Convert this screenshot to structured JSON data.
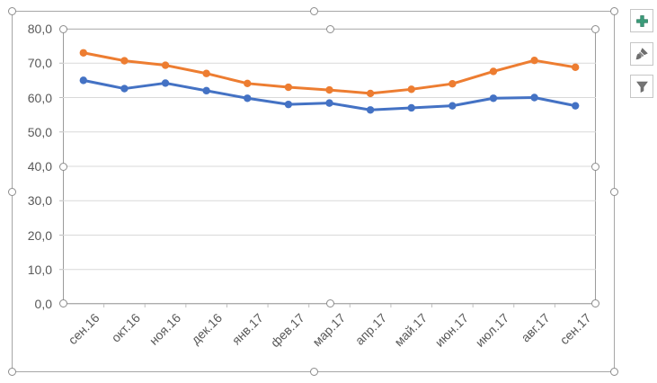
{
  "chart_data": {
    "type": "line",
    "title": "",
    "xlabel": "",
    "ylabel": "",
    "categories": [
      "сен.16",
      "окт.16",
      "ноя.16",
      "дек.16",
      "янв.17",
      "фев.17",
      "мар.17",
      "апр.17",
      "май.17",
      "июн.17",
      "июл.17",
      "авг.17",
      "сен.17"
    ],
    "series": [
      {
        "name": "series-orange",
        "color": "#ED7D31",
        "values": [
          73.0,
          70.7,
          69.4,
          67.0,
          64.1,
          63.0,
          62.2,
          61.2,
          62.4,
          64.0,
          67.6,
          70.8,
          68.8
        ]
      },
      {
        "name": "series-blue",
        "color": "#4472C4",
        "values": [
          65.0,
          62.6,
          64.2,
          62.0,
          59.8,
          58.0,
          58.4,
          56.4,
          57.0,
          57.6,
          59.8,
          60.0,
          57.6
        ]
      }
    ],
    "ylim": [
      0,
      80
    ],
    "ytick_step": 10,
    "ytick_labels_top_to_bottom": [
      "80,0",
      "70,0",
      "60,0",
      "50,0",
      "40,0",
      "30,0",
      "20,0",
      "10,0",
      "0,0"
    ],
    "grid": true,
    "legend": "none",
    "marker": "circle",
    "axis_number_format": "comma-decimal"
  },
  "selection": {
    "state": "plot-area-selected",
    "handle_count_outer": 8,
    "handle_count_inner": 8
  },
  "toolbar": {
    "buttons": [
      {
        "id": "chart-elements",
        "icon": "plus-icon"
      },
      {
        "id": "chart-styles",
        "icon": "paintbrush-icon"
      },
      {
        "id": "chart-filters",
        "icon": "funnel-icon"
      }
    ]
  },
  "colors": {
    "series_orange": "#ED7D31",
    "series_blue": "#4472C4",
    "gridline": "#D9D9D9",
    "axis_line": "#BFBFBF",
    "axis_text": "#595959",
    "selection_border": "#A6A6A6",
    "handle_border": "#8C8C8C",
    "plus_green": "#3B9C7A",
    "tool_icon_gray": "#6E6E6E"
  }
}
